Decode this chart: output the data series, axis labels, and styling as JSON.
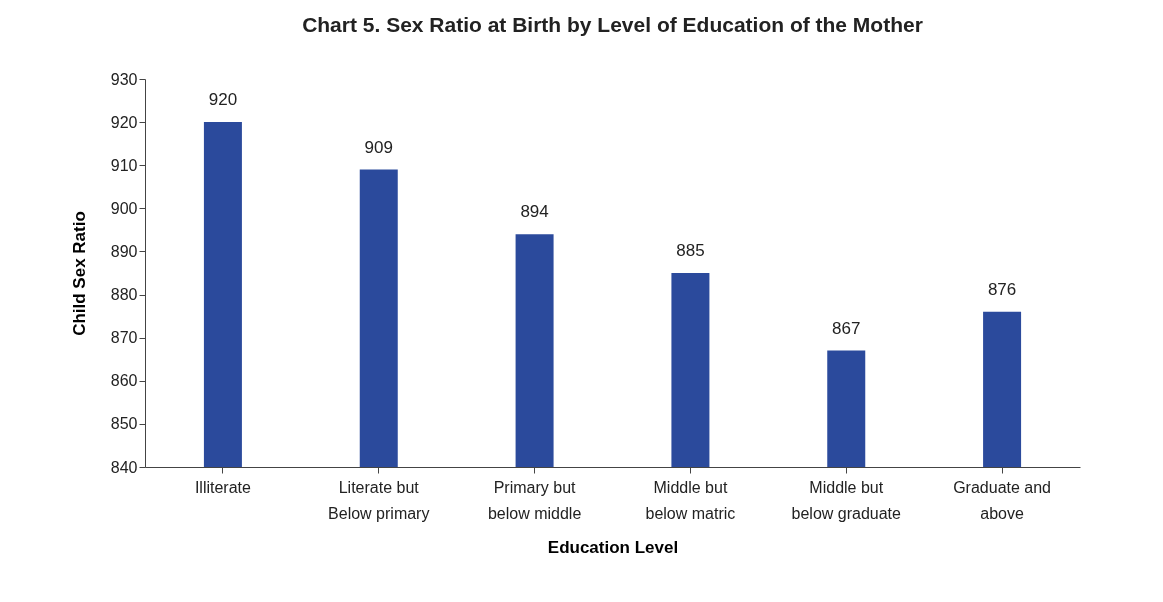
{
  "chart_data": {
    "type": "bar",
    "title": "Chart 5. Sex Ratio at Birth by Level of Education of the Mother",
    "xlabel": "Education Level",
    "ylabel": "Child Sex Ratio",
    "categories": [
      "Illiterate",
      "Literate but Below primary",
      "Primary but below middle",
      "Middle but below matric",
      "Middle but below graduate",
      "Graduate and above"
    ],
    "values": [
      920,
      909,
      894,
      885,
      867,
      876
    ],
    "color": "#2b4a9c",
    "ylim": [
      840,
      930
    ],
    "yticks": [
      840,
      850,
      860,
      870,
      880,
      890,
      900,
      910,
      920,
      930
    ],
    "grid": false,
    "data_labels": true
  }
}
